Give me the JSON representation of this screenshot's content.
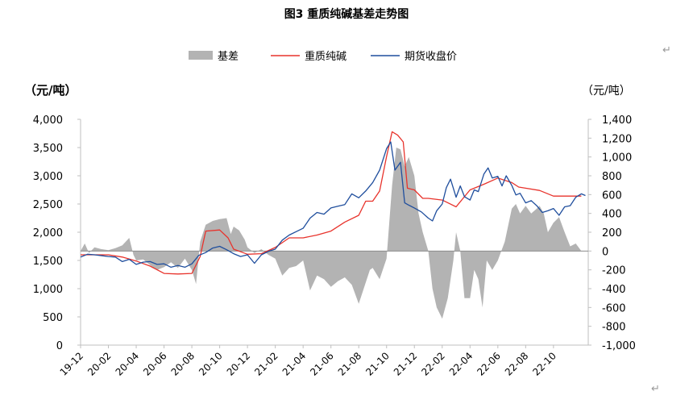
{
  "chart_data": {
    "type": "line",
    "title": "图3 重质纯碱基差走势图",
    "legend": [
      "基差",
      "重质纯碱",
      "期货收盘价"
    ],
    "legend_position": "top-center",
    "ylabel_left": "（元/吨）",
    "ylabel_right": "（元/吨）",
    "y_left": {
      "lim": [
        0,
        4000
      ],
      "ticks": [
        0,
        500,
        1000,
        1500,
        2000,
        2500,
        3000,
        3500,
        4000
      ],
      "tick_labels": [
        "0",
        "500",
        "1,000",
        "1,500",
        "2,000",
        "2,500",
        "3,000",
        "3,500",
        "4,000"
      ]
    },
    "y_right": {
      "lim": [
        -1000,
        1400
      ],
      "ticks": [
        -1000,
        -800,
        -600,
        -400,
        -200,
        0,
        200,
        400,
        600,
        800,
        1000,
        1200,
        1400
      ],
      "tick_labels": [
        "-1,000",
        "-800",
        "-600",
        "-400",
        "-200",
        "0",
        "200",
        "400",
        "600",
        "800",
        "1,000",
        "1,200",
        "1,400"
      ]
    },
    "x_labels": [
      "19-12",
      "20-02",
      "20-04",
      "20-06",
      "20-08",
      "20-10",
      "20-12",
      "21-02",
      "21-04",
      "21-06",
      "21-08",
      "21-10",
      "21-12",
      "22-02",
      "22-04",
      "22-06",
      "22-08",
      "22-10"
    ],
    "x_months": [
      0,
      2,
      4,
      6,
      8,
      10,
      12,
      14,
      16,
      18,
      20,
      22,
      24,
      26,
      28,
      30,
      32,
      34
    ],
    "x_range_months": [
      0,
      36.5
    ],
    "series": [
      {
        "name": "基差",
        "type": "area",
        "axis": "right",
        "color": "#b3b3b3",
        "points": [
          [
            0,
            0
          ],
          [
            0.3,
            80
          ],
          [
            0.6,
            -20
          ],
          [
            1,
            40
          ],
          [
            1.5,
            20
          ],
          [
            2,
            10
          ],
          [
            2.5,
            30
          ],
          [
            3,
            60
          ],
          [
            3.5,
            140
          ],
          [
            3.8,
            -40
          ],
          [
            4,
            -100
          ],
          [
            4.5,
            -90
          ],
          [
            5,
            -150
          ],
          [
            5.5,
            -200
          ],
          [
            6,
            -170
          ],
          [
            6.5,
            -120
          ],
          [
            7,
            -180
          ],
          [
            7.5,
            -80
          ],
          [
            8,
            -200
          ],
          [
            8.3,
            -350
          ],
          [
            8.6,
            100
          ],
          [
            9,
            280
          ],
          [
            9.5,
            320
          ],
          [
            10,
            340
          ],
          [
            10.5,
            350
          ],
          [
            10.8,
            180
          ],
          [
            11,
            260
          ],
          [
            11.4,
            220
          ],
          [
            11.8,
            120
          ],
          [
            12,
            40
          ],
          [
            12.5,
            -20
          ],
          [
            13,
            20
          ],
          [
            13.5,
            -40
          ],
          [
            14,
            -80
          ],
          [
            14.5,
            -260
          ],
          [
            15,
            -180
          ],
          [
            15.5,
            -160
          ],
          [
            16,
            -100
          ],
          [
            16.5,
            -420
          ],
          [
            17,
            -260
          ],
          [
            17.5,
            -300
          ],
          [
            18,
            -380
          ],
          [
            18.5,
            -320
          ],
          [
            19,
            -280
          ],
          [
            19.5,
            -360
          ],
          [
            20,
            -560
          ],
          [
            20.4,
            -380
          ],
          [
            20.8,
            -200
          ],
          [
            21,
            -180
          ],
          [
            21.5,
            -300
          ],
          [
            22,
            -80
          ],
          [
            22.4,
            700
          ],
          [
            22.7,
            1100
          ],
          [
            23,
            1080
          ],
          [
            23.3,
            900
          ],
          [
            23.6,
            1000
          ],
          [
            24,
            800
          ],
          [
            24.3,
            400
          ],
          [
            24.6,
            200
          ],
          [
            25,
            0
          ],
          [
            25.3,
            -400
          ],
          [
            25.6,
            -600
          ],
          [
            26,
            -720
          ],
          [
            26.4,
            -500
          ],
          [
            26.8,
            -100
          ],
          [
            27,
            200
          ],
          [
            27.3,
            0
          ],
          [
            27.6,
            -500
          ],
          [
            28,
            -500
          ],
          [
            28.3,
            -200
          ],
          [
            28.6,
            -300
          ],
          [
            28.9,
            -600
          ],
          [
            29.2,
            -100
          ],
          [
            29.6,
            -200
          ],
          [
            30,
            -100
          ],
          [
            30.5,
            100
          ],
          [
            31,
            450
          ],
          [
            31.3,
            500
          ],
          [
            31.6,
            400
          ],
          [
            32,
            480
          ],
          [
            32.4,
            400
          ],
          [
            32.8,
            450
          ],
          [
            33,
            480
          ],
          [
            33.3,
            400
          ],
          [
            33.6,
            200
          ],
          [
            34,
            300
          ],
          [
            34.4,
            360
          ],
          [
            34.8,
            200
          ],
          [
            35.2,
            50
          ],
          [
            35.6,
            80
          ],
          [
            36,
            0
          ]
        ]
      },
      {
        "name": "重质纯碱",
        "type": "line",
        "axis": "left",
        "color": "#e8332c",
        "points": [
          [
            0,
            1600
          ],
          [
            2,
            1600
          ],
          [
            3,
            1560
          ],
          [
            4,
            1490
          ],
          [
            5,
            1400
          ],
          [
            6,
            1270
          ],
          [
            7,
            1260
          ],
          [
            8,
            1270
          ],
          [
            8.6,
            1570
          ],
          [
            9,
            2020
          ],
          [
            10,
            2040
          ],
          [
            10.6,
            1900
          ],
          [
            11,
            1700
          ],
          [
            12,
            1610
          ],
          [
            13,
            1620
          ],
          [
            14,
            1730
          ],
          [
            15,
            1900
          ],
          [
            16,
            1900
          ],
          [
            17,
            1950
          ],
          [
            18,
            2020
          ],
          [
            19,
            2180
          ],
          [
            20,
            2300
          ],
          [
            20.5,
            2550
          ],
          [
            21,
            2550
          ],
          [
            21.5,
            2730
          ],
          [
            22,
            3340
          ],
          [
            22.4,
            3780
          ],
          [
            22.8,
            3720
          ],
          [
            23.2,
            3600
          ],
          [
            23.5,
            2780
          ],
          [
            24,
            2750
          ],
          [
            24.6,
            2600
          ],
          [
            25,
            2600
          ],
          [
            26,
            2570
          ],
          [
            27,
            2450
          ],
          [
            28,
            2750
          ],
          [
            29,
            2850
          ],
          [
            30,
            2960
          ],
          [
            30.5,
            2920
          ],
          [
            31,
            2880
          ],
          [
            31.5,
            2800
          ],
          [
            32,
            2780
          ],
          [
            33,
            2740
          ],
          [
            34,
            2640
          ],
          [
            35,
            2640
          ],
          [
            36,
            2640
          ]
        ]
      },
      {
        "name": "期货收盘价",
        "type": "line",
        "axis": "left",
        "color": "#1f4e9d",
        "points": [
          [
            0,
            1560
          ],
          [
            0.5,
            1610
          ],
          [
            1,
            1600
          ],
          [
            2,
            1570
          ],
          [
            2.5,
            1560
          ],
          [
            3,
            1480
          ],
          [
            3.5,
            1520
          ],
          [
            4,
            1430
          ],
          [
            4.5,
            1470
          ],
          [
            5,
            1480
          ],
          [
            5.5,
            1430
          ],
          [
            6,
            1440
          ],
          [
            6.5,
            1380
          ],
          [
            7,
            1410
          ],
          [
            7.5,
            1380
          ],
          [
            8,
            1440
          ],
          [
            8.5,
            1590
          ],
          [
            9,
            1640
          ],
          [
            9.5,
            1720
          ],
          [
            10,
            1750
          ],
          [
            10.5,
            1690
          ],
          [
            11,
            1620
          ],
          [
            11.5,
            1570
          ],
          [
            12,
            1600
          ],
          [
            12.5,
            1450
          ],
          [
            13,
            1600
          ],
          [
            13.5,
            1660
          ],
          [
            14,
            1700
          ],
          [
            14.5,
            1860
          ],
          [
            15,
            1950
          ],
          [
            15.5,
            2010
          ],
          [
            16,
            2070
          ],
          [
            16.5,
            2250
          ],
          [
            17,
            2350
          ],
          [
            17.5,
            2320
          ],
          [
            18,
            2430
          ],
          [
            18.5,
            2460
          ],
          [
            19,
            2490
          ],
          [
            19.5,
            2680
          ],
          [
            20,
            2610
          ],
          [
            20.5,
            2730
          ],
          [
            21,
            2880
          ],
          [
            21.5,
            3100
          ],
          [
            22,
            3480
          ],
          [
            22.3,
            3600
          ],
          [
            22.6,
            3100
          ],
          [
            23,
            3240
          ],
          [
            23.3,
            2520
          ],
          [
            23.6,
            2480
          ],
          [
            24,
            2430
          ],
          [
            24.5,
            2360
          ],
          [
            25,
            2250
          ],
          [
            25.3,
            2200
          ],
          [
            25.6,
            2380
          ],
          [
            26,
            2500
          ],
          [
            26.3,
            2790
          ],
          [
            26.6,
            2940
          ],
          [
            27,
            2620
          ],
          [
            27.3,
            2820
          ],
          [
            27.6,
            2630
          ],
          [
            28,
            2570
          ],
          [
            28.3,
            2750
          ],
          [
            28.6,
            2720
          ],
          [
            29,
            3030
          ],
          [
            29.3,
            3140
          ],
          [
            29.6,
            2960
          ],
          [
            30,
            2990
          ],
          [
            30.3,
            2820
          ],
          [
            30.6,
            3000
          ],
          [
            31,
            2830
          ],
          [
            31.3,
            2660
          ],
          [
            31.6,
            2690
          ],
          [
            32,
            2520
          ],
          [
            32.4,
            2560
          ],
          [
            32.8,
            2470
          ],
          [
            33.2,
            2350
          ],
          [
            33.6,
            2380
          ],
          [
            34,
            2420
          ],
          [
            34.4,
            2300
          ],
          [
            34.8,
            2450
          ],
          [
            35.2,
            2470
          ],
          [
            35.6,
            2620
          ],
          [
            36,
            2680
          ],
          [
            36.3,
            2650
          ]
        ]
      }
    ]
  },
  "marks": {
    "top_right": "↵",
    "bottom_right": "↵"
  }
}
